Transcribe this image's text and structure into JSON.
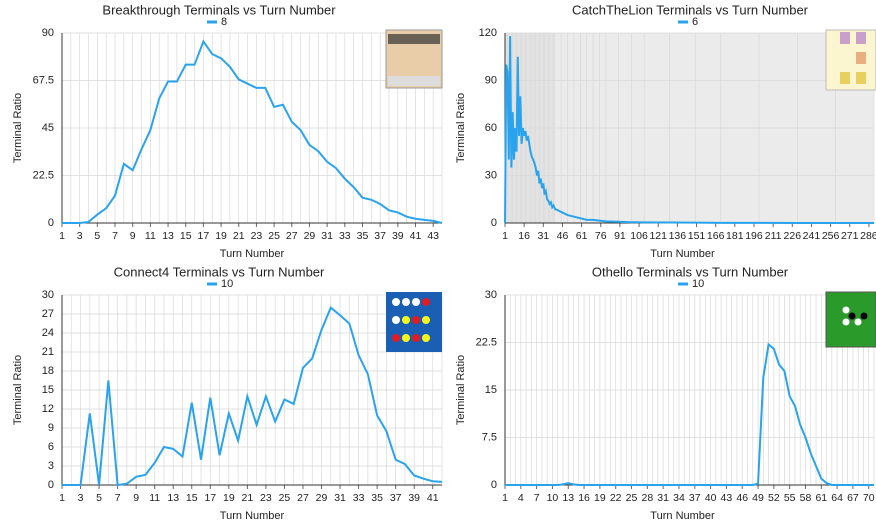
{
  "chart_data": [
    {
      "type": "line",
      "title": "Breakthrough Terminals vs Turn Number",
      "x_label": "Turn Number",
      "y_label": "Terminal Ratio",
      "x": [
        1,
        2,
        3,
        4,
        5,
        6,
        7,
        8,
        9,
        10,
        11,
        12,
        13,
        14,
        15,
        16,
        17,
        18,
        19,
        20,
        21,
        22,
        23,
        24,
        25,
        26,
        27,
        28,
        29,
        30,
        31,
        32,
        33,
        34,
        35,
        36,
        37,
        38,
        39,
        40,
        41,
        42,
        43,
        44
      ],
      "series": [
        {
          "name": "8",
          "color": "#2aa3ee",
          "values": [
            0,
            0,
            0,
            0.5,
            4,
            7,
            13,
            28,
            25,
            35,
            44,
            59,
            67,
            67,
            75,
            75,
            86,
            80,
            78,
            74,
            68,
            66,
            64,
            64,
            55,
            56,
            48,
            44,
            37,
            34,
            29,
            26,
            21,
            17,
            12,
            11,
            9,
            6,
            5,
            3,
            2,
            1.5,
            1,
            0
          ]
        }
      ],
      "xlim": [
        1,
        44
      ],
      "ylim": [
        0,
        90
      ],
      "xticks": [
        1,
        3,
        5,
        7,
        9,
        11,
        13,
        15,
        17,
        19,
        21,
        23,
        25,
        27,
        29,
        31,
        33,
        35,
        37,
        39,
        41,
        43
      ],
      "yticks": [
        0,
        22.5,
        45,
        67.5,
        90
      ],
      "grid": true,
      "legend": "top"
    },
    {
      "type": "line",
      "title": "CatchTheLion Terminals vs Turn Number",
      "x_label": "Turn Number",
      "y_label": "Terminal Ratio",
      "x": [
        1,
        2,
        3,
        4,
        5,
        6,
        7,
        8,
        9,
        10,
        11,
        12,
        13,
        14,
        15,
        16,
        17,
        18,
        19,
        20,
        21,
        22,
        23,
        24,
        25,
        26,
        27,
        28,
        29,
        30,
        31,
        32,
        33,
        34,
        35,
        36,
        37,
        38,
        39,
        40,
        45,
        50,
        55,
        60,
        65,
        70,
        75,
        80,
        90,
        100,
        110,
        130,
        150,
        170,
        200,
        230,
        260,
        290
      ],
      "series": [
        {
          "name": "6",
          "color": "#2aa3ee",
          "values": [
            0,
            100,
            95,
            40,
            118,
            35,
            70,
            40,
            60,
            45,
            105,
            55,
            80,
            50,
            60,
            55,
            58,
            52,
            55,
            50,
            45,
            42,
            40,
            38,
            35,
            30,
            33,
            25,
            28,
            22,
            25,
            18,
            20,
            15,
            14,
            12,
            13,
            10,
            11,
            9,
            7,
            5,
            4,
            3,
            2,
            2,
            1.5,
            1,
            0.8,
            0.5,
            0.4,
            0.3,
            0.2,
            0.1,
            0.1,
            0,
            0,
            0
          ]
        }
      ],
      "xlim": [
        1,
        290
      ],
      "ylim": [
        0,
        120
      ],
      "xticks": [
        1,
        16,
        31,
        46,
        61,
        76,
        91,
        106,
        121,
        136,
        151,
        166,
        181,
        196,
        211,
        226,
        241,
        256,
        271,
        286
      ],
      "yticks": [
        0,
        30,
        60,
        90,
        120
      ],
      "grid": true,
      "legend": "top",
      "plot_background": "#ebebeb"
    },
    {
      "type": "line",
      "title": "Connect4 Terminals vs Turn Number",
      "x_label": "Turn Number",
      "y_label": "Terminal Ratio",
      "x": [
        1,
        2,
        3,
        4,
        5,
        6,
        7,
        8,
        9,
        10,
        11,
        12,
        13,
        14,
        15,
        16,
        17,
        18,
        19,
        20,
        21,
        22,
        23,
        24,
        25,
        26,
        27,
        28,
        29,
        30,
        31,
        32,
        33,
        34,
        35,
        36,
        37,
        38,
        39,
        40,
        41,
        42
      ],
      "series": [
        {
          "name": "10",
          "color": "#2aa3ee",
          "values": [
            0,
            0,
            0,
            11.3,
            0,
            16.5,
            0,
            0.2,
            1.3,
            1.6,
            3.5,
            6,
            5.7,
            4.5,
            13,
            4,
            13.8,
            4.7,
            11.3,
            7,
            14,
            9.5,
            14,
            10,
            13.5,
            12.8,
            18.5,
            20,
            24.5,
            28,
            26.8,
            25.5,
            20.5,
            17.5,
            11,
            8.5,
            4,
            3.3,
            1.5,
            1,
            0.6,
            0.5
          ]
        }
      ],
      "xlim": [
        1,
        42
      ],
      "ylim": [
        0,
        30
      ],
      "xticks": [
        1,
        3,
        5,
        7,
        9,
        11,
        13,
        15,
        17,
        19,
        21,
        23,
        25,
        27,
        29,
        31,
        33,
        35,
        37,
        39,
        41
      ],
      "yticks": [
        0,
        3,
        6,
        9,
        12,
        15,
        18,
        21,
        24,
        27,
        30
      ],
      "grid": true,
      "legend": "top"
    },
    {
      "type": "line",
      "title": "Othello Terminals vs Turn Number",
      "x_label": "Turn Number",
      "y_label": "Terminal Ratio",
      "x": [
        1,
        2,
        3,
        4,
        5,
        6,
        7,
        8,
        9,
        10,
        11,
        12,
        13,
        14,
        15,
        16,
        17,
        18,
        19,
        20,
        21,
        22,
        23,
        24,
        25,
        26,
        27,
        28,
        29,
        30,
        31,
        32,
        33,
        34,
        35,
        36,
        37,
        38,
        39,
        40,
        41,
        42,
        43,
        44,
        45,
        46,
        47,
        48,
        49,
        50,
        51,
        52,
        53,
        54,
        55,
        56,
        57,
        58,
        59,
        60,
        61,
        62,
        63,
        64,
        65,
        66,
        67,
        68,
        69,
        70,
        71
      ],
      "series": [
        {
          "name": "10",
          "color": "#2aa3ee",
          "values": [
            0,
            0,
            0,
            0,
            0,
            0,
            0,
            0,
            0,
            0,
            0,
            0.1,
            0.3,
            0.1,
            0,
            0,
            0,
            0,
            0,
            0,
            0,
            0,
            0,
            0,
            0,
            0,
            0,
            0,
            0,
            0,
            0,
            0,
            0,
            0,
            0,
            0,
            0,
            0,
            0,
            0,
            0,
            0,
            0,
            0,
            0,
            0,
            0,
            0,
            0.2,
            17,
            22.2,
            21.5,
            19,
            18,
            14,
            12.5,
            9.5,
            7.5,
            5,
            3,
            1,
            0.3,
            0,
            0,
            0,
            0,
            0,
            0,
            0,
            0,
            0
          ]
        }
      ],
      "xlim": [
        1,
        71
      ],
      "ylim": [
        0,
        30
      ],
      "xticks": [
        1,
        4,
        7,
        10,
        13,
        16,
        19,
        22,
        25,
        28,
        31,
        34,
        37,
        40,
        43,
        46,
        49,
        52,
        55,
        58,
        61,
        64,
        67,
        70
      ],
      "yticks": [
        0,
        7.5,
        15,
        22.5,
        30
      ],
      "grid": true,
      "legend": "top"
    }
  ]
}
